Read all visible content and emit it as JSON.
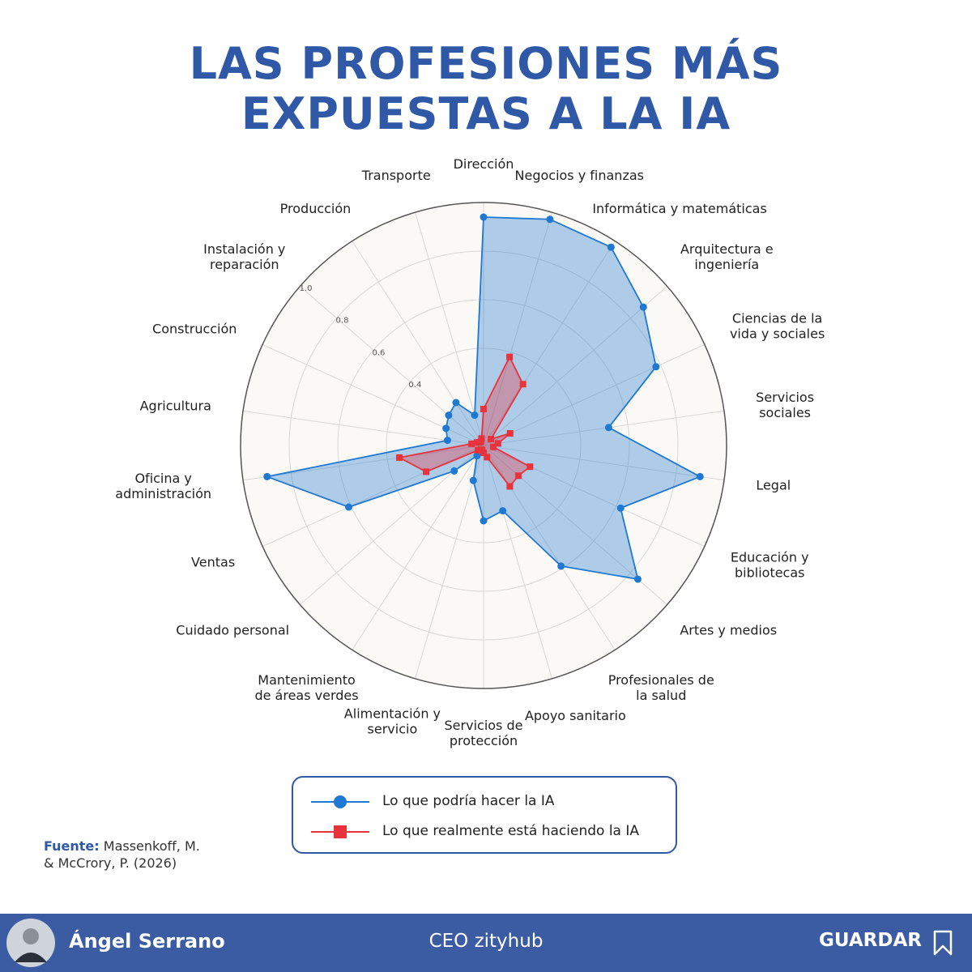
{
  "chart_data": {
    "type": "radar",
    "title": "LAS PROFESIONES MÁS EXPUESTAS A LA IA",
    "categories": [
      "Dirección",
      "Negocios y finanzas",
      "Informática y matemáticas",
      "Arquitectura e\ningeniería",
      "Ciencias de la\nvida y sociales",
      "Servicios\nsociales",
      "Legal",
      "Educación y\nbibliotecas",
      "Artes y medios",
      "Profesionales de\nla salud",
      "Apoyo sanitario",
      "Servicios de\nprotección",
      "Alimentación y\nservicio",
      "Mantenimiento\nde áreas verdes",
      "Cuidado personal",
      "Ventas",
      "Oficina y\nadministración",
      "Agricultura",
      "Construcción",
      "Instalación y\nreparación",
      "Producción",
      "Transporte"
    ],
    "series": [
      {
        "name": "Lo que podría hacer la IA",
        "color": "#1f78d1",
        "marker": "circle",
        "values": [
          0.94,
          0.97,
          0.97,
          0.87,
          0.78,
          0.52,
          0.9,
          0.62,
          0.84,
          0.59,
          0.28,
          0.31,
          0.15,
          0.05,
          0.16,
          0.61,
          0.9,
          0.15,
          0.17,
          0.19,
          0.21,
          0.13
        ]
      },
      {
        "name": "Lo que realmente está haciendo la IA",
        "color": "#e8323c",
        "marker": "square",
        "values": [
          0.15,
          0.38,
          0.3,
          0.04,
          0.12,
          0.06,
          0.04,
          0.21,
          0.19,
          0.2,
          0.05,
          0.03,
          0.02,
          0.02,
          0.03,
          0.26,
          0.35,
          0.05,
          0.03,
          0.02,
          0.02,
          0.03
        ]
      }
    ],
    "ylim": [
      0,
      1
    ],
    "yticks": [
      0.4,
      0.6,
      0.8,
      {
        "value": 1,
        "label": "1.0"
      }
    ],
    "grid": true
  },
  "source": {
    "label": "Fuente:",
    "text": "Massenkoff, M.\n& McCrory, P. (2026)"
  },
  "footer": {
    "name": "Ángel Serrano",
    "role": "CEO zityhub",
    "action": "GUARDAR"
  }
}
